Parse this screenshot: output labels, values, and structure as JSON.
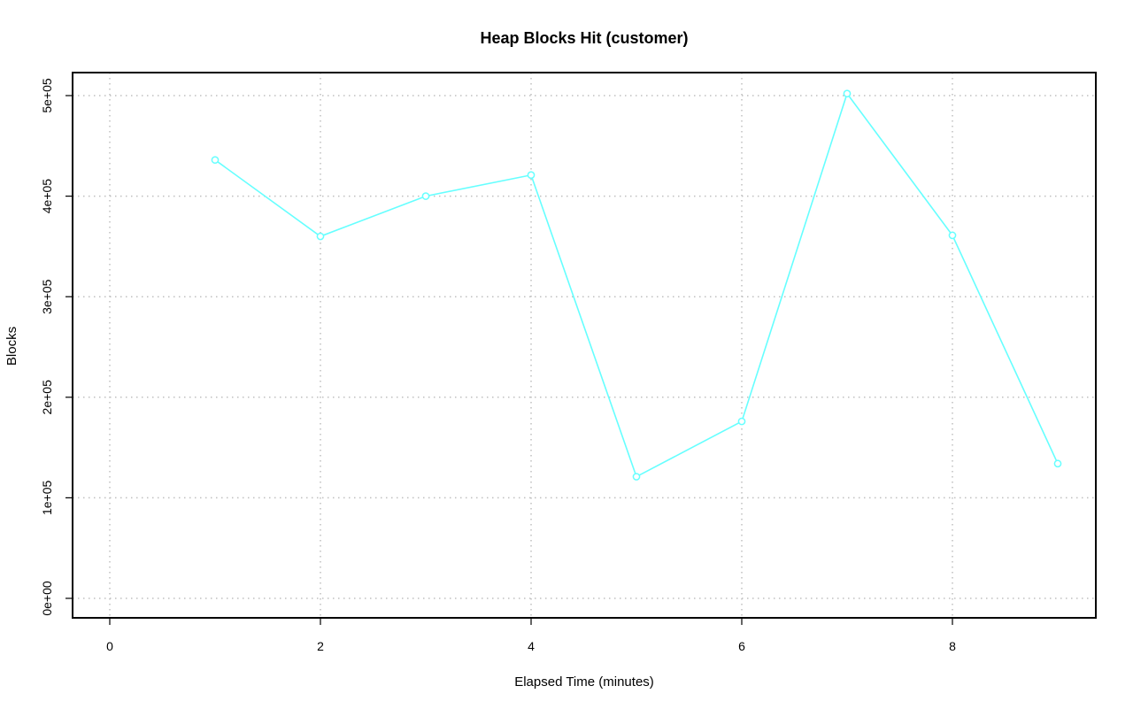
{
  "chart_data": {
    "type": "line",
    "title": "Heap Blocks Hit (customer)",
    "xlabel": "Elapsed Time (minutes)",
    "ylabel": "Blocks",
    "xlim": [
      0,
      9
    ],
    "ylim": [
      0,
      500000
    ],
    "x_ticks": [
      0,
      2,
      4,
      6,
      8
    ],
    "x_tick_labels": [
      "0",
      "2",
      "4",
      "6",
      "8"
    ],
    "y_ticks": [
      0,
      100000,
      200000,
      300000,
      400000,
      500000
    ],
    "y_tick_labels": [
      "0e+00",
      "1e+05",
      "2e+05",
      "3e+05",
      "4e+05",
      "5e+05"
    ],
    "grid": true,
    "legend": "none",
    "series": [
      {
        "color": "#66ffff",
        "marker": "open-circle",
        "x": [
          1,
          2,
          3,
          4,
          5,
          6,
          7,
          8,
          9
        ],
        "values": [
          436000,
          360000,
          400000,
          421000,
          121000,
          176000,
          502000,
          361000,
          134000
        ]
      }
    ]
  }
}
